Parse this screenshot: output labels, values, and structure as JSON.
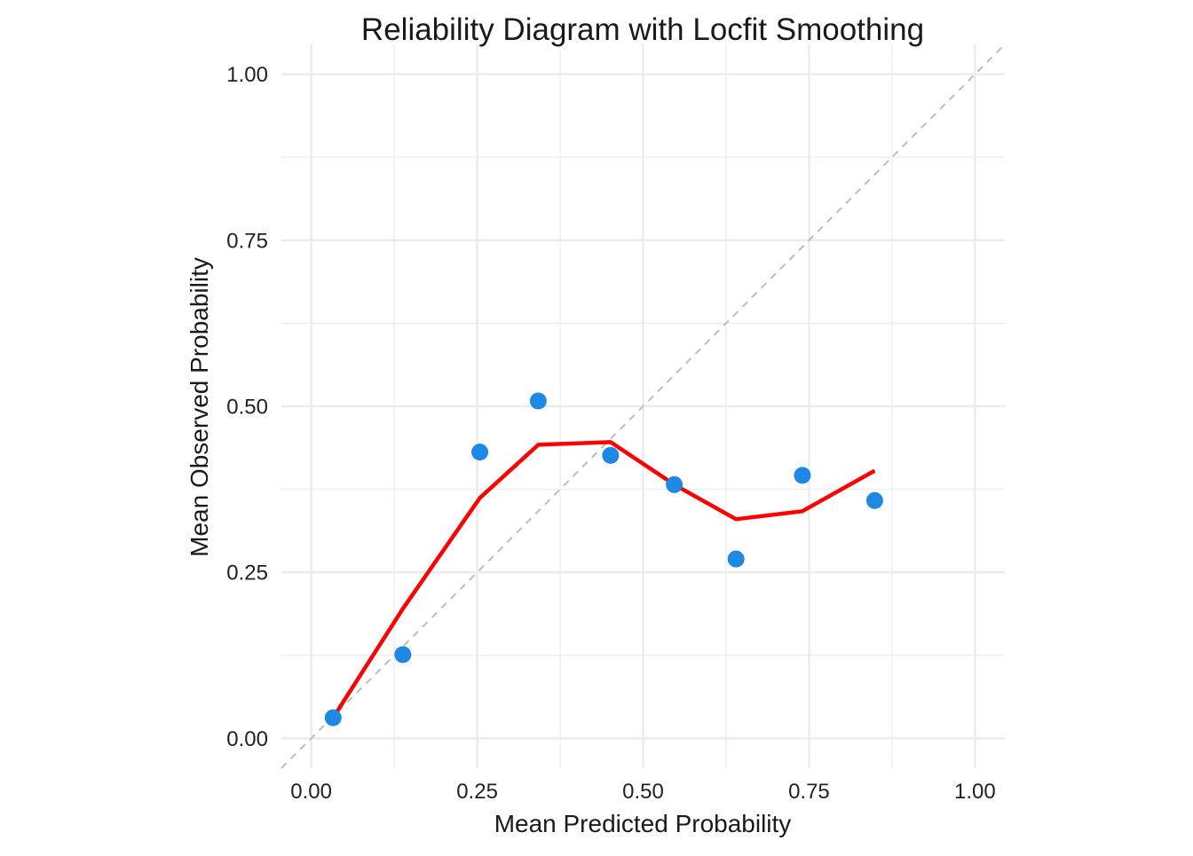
{
  "chart_data": {
    "type": "scatter",
    "title": "Reliability Diagram with Locfit Smoothing",
    "xlabel": "Mean Predicted Probability",
    "ylabel": "Mean Observed Probability",
    "xlim": [
      -0.045,
      1.045
    ],
    "ylim": [
      -0.045,
      1.045
    ],
    "x_ticks": [
      0,
      0.25,
      0.5,
      0.75,
      1
    ],
    "x_tick_labels": [
      "0.00",
      "0.25",
      "0.50",
      "0.75",
      "1.00"
    ],
    "y_ticks": [
      0,
      0.25,
      0.5,
      0.75,
      1
    ],
    "y_tick_labels": [
      "0.00",
      "0.25",
      "0.50",
      "0.75",
      "1.00"
    ],
    "minor_ticks": [
      0.125,
      0.375,
      0.625,
      0.875
    ],
    "grid": true,
    "legend": "none",
    "colors": {
      "points": "#1e88e5",
      "smooth": "#ff0000",
      "reference": "#bdbdbd",
      "grid": "#ebebeb"
    },
    "series": [
      {
        "type": "scatter",
        "x": [
          0.033,
          0.138,
          0.254,
          0.342,
          0.451,
          0.547,
          0.64,
          0.74,
          0.849
        ],
        "y": [
          0.031,
          0.126,
          0.431,
          0.508,
          0.426,
          0.382,
          0.27,
          0.396,
          0.358
        ]
      },
      {
        "type": "line",
        "x": [
          0.033,
          0.138,
          0.254,
          0.342,
          0.451,
          0.547,
          0.64,
          0.74,
          0.849
        ],
        "y": [
          0.031,
          0.195,
          0.362,
          0.442,
          0.446,
          0.382,
          0.33,
          0.342,
          0.403
        ]
      },
      {
        "type": "reference",
        "x": [
          -0.045,
          1.045
        ],
        "y": [
          -0.045,
          1.045
        ]
      }
    ]
  }
}
